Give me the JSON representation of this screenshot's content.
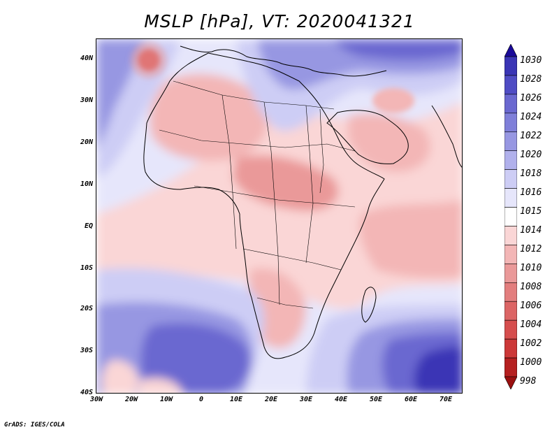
{
  "title": "MSLP [hPa], VT: 2020041321",
  "footer": "GrADS: IGES/COLA",
  "y_axis_labels": [
    "40N",
    "30N",
    "20N",
    "10N",
    "EQ",
    "10S",
    "20S",
    "30S",
    "40S"
  ],
  "x_axis_labels": [
    "30W",
    "20W",
    "10W",
    "0",
    "10E",
    "20E",
    "30E",
    "40E",
    "50E",
    "60E",
    "70E"
  ],
  "colorbar": {
    "levels": [
      "1030",
      "1028",
      "1026",
      "1024",
      "1022",
      "1020",
      "1018",
      "1016",
      "1015",
      "1014",
      "1012",
      "1010",
      "1008",
      "1006",
      "1004",
      "1002",
      "1000",
      "998"
    ],
    "colors": [
      "#1a0a99",
      "#3a35b5",
      "#4f4cc4",
      "#6a68d0",
      "#7f7fd9",
      "#9797e2",
      "#b1b1ec",
      "#cdcdf5",
      "#e6e6fb",
      "#ffffff",
      "#fad6d6",
      "#f3b6b6",
      "#ea9999",
      "#e37e7e",
      "#dc6565",
      "#d64e4e",
      "#cc3838",
      "#b52020",
      "#9a1010"
    ]
  },
  "map_colors": {
    "ocean": "#b7b7ee",
    "neutral": "#e6e6fb",
    "pink_light": "#fad6d6",
    "pink": "#f3b6b6",
    "pink_mid": "#ea9999",
    "blue_light": "#cdcdf5",
    "blue": "#9797e2",
    "blue_mid": "#6a68d0",
    "blue_dark": "#3a35b5",
    "blue_deep": "#1a0a99",
    "red": "#d64e4e",
    "coast": "#000000"
  }
}
